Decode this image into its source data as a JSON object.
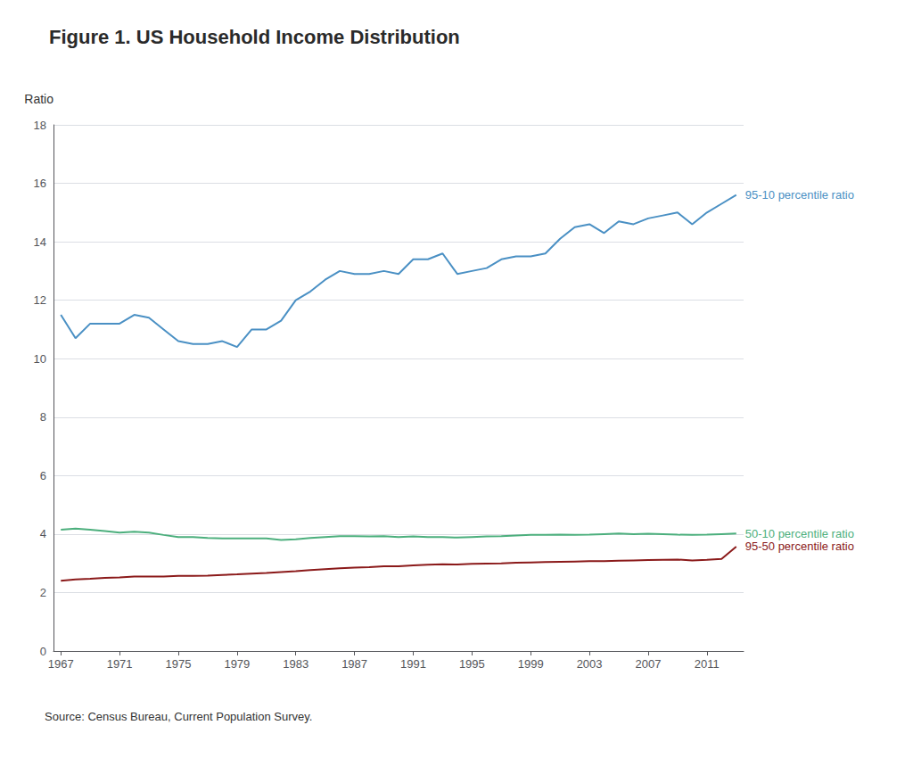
{
  "chart_data": {
    "type": "line",
    "title": "Figure 1. US Household Income Distribution",
    "ylabel": "Ratio",
    "annotations": [
      "Source: Census Bureau, Current Population Survey."
    ],
    "x": [
      1967,
      1968,
      1969,
      1970,
      1971,
      1972,
      1973,
      1974,
      1975,
      1976,
      1977,
      1978,
      1979,
      1980,
      1981,
      1982,
      1983,
      1984,
      1985,
      1986,
      1987,
      1988,
      1989,
      1990,
      1991,
      1992,
      1993,
      1994,
      1995,
      1996,
      1997,
      1998,
      1999,
      2000,
      2001,
      2002,
      2003,
      2004,
      2005,
      2006,
      2007,
      2008,
      2009,
      2010,
      2011,
      2012,
      2013
    ],
    "series": [
      {
        "name": "95-10 percentile ratio",
        "color": "#4a90c4",
        "values": [
          11.5,
          10.7,
          11.2,
          11.2,
          11.2,
          11.5,
          11.4,
          11.0,
          10.6,
          10.5,
          10.5,
          10.6,
          10.4,
          11.0,
          11.0,
          11.3,
          12.0,
          12.3,
          12.7,
          13.0,
          12.9,
          12.9,
          13.0,
          12.9,
          13.4,
          13.4,
          13.6,
          12.9,
          13.0,
          13.1,
          13.4,
          13.5,
          13.5,
          13.6,
          14.1,
          14.5,
          14.6,
          14.3,
          14.7,
          14.6,
          14.8,
          14.9,
          15.0,
          14.6,
          15.0,
          15.3,
          15.6
        ]
      },
      {
        "name": "50-10 percentile ratio",
        "color": "#4caf7d",
        "values": [
          4.15,
          4.19,
          4.15,
          4.1,
          4.05,
          4.08,
          4.05,
          3.97,
          3.9,
          3.9,
          3.87,
          3.85,
          3.85,
          3.85,
          3.85,
          3.8,
          3.82,
          3.87,
          3.9,
          3.93,
          3.93,
          3.92,
          3.93,
          3.9,
          3.92,
          3.9,
          3.9,
          3.88,
          3.9,
          3.92,
          3.93,
          3.95,
          3.97,
          3.97,
          3.98,
          3.97,
          3.98,
          4.0,
          4.02,
          4.0,
          4.01,
          4.0,
          3.98,
          3.97,
          3.98,
          4.0,
          4.02
        ]
      },
      {
        "name": "95-50 percentile ratio",
        "color": "#8b1a1a",
        "values": [
          2.4,
          2.45,
          2.47,
          2.5,
          2.52,
          2.55,
          2.55,
          2.55,
          2.57,
          2.57,
          2.58,
          2.6,
          2.62,
          2.65,
          2.67,
          2.7,
          2.73,
          2.77,
          2.8,
          2.83,
          2.85,
          2.87,
          2.9,
          2.9,
          2.93,
          2.95,
          2.97,
          2.96,
          2.98,
          2.99,
          3.0,
          3.02,
          3.03,
          3.04,
          3.05,
          3.06,
          3.07,
          3.07,
          3.09,
          3.1,
          3.11,
          3.12,
          3.13,
          3.1,
          3.12,
          3.15,
          3.57
        ]
      }
    ],
    "xlim": [
      1966.5,
      2013.5
    ],
    "xticks": [
      1967,
      1971,
      1975,
      1979,
      1983,
      1987,
      1991,
      1995,
      1999,
      2003,
      2007,
      2011
    ],
    "ylim": [
      0,
      18
    ],
    "yticks": [
      0,
      2,
      4,
      6,
      8,
      10,
      12,
      14,
      16,
      18
    ],
    "grid": true
  }
}
